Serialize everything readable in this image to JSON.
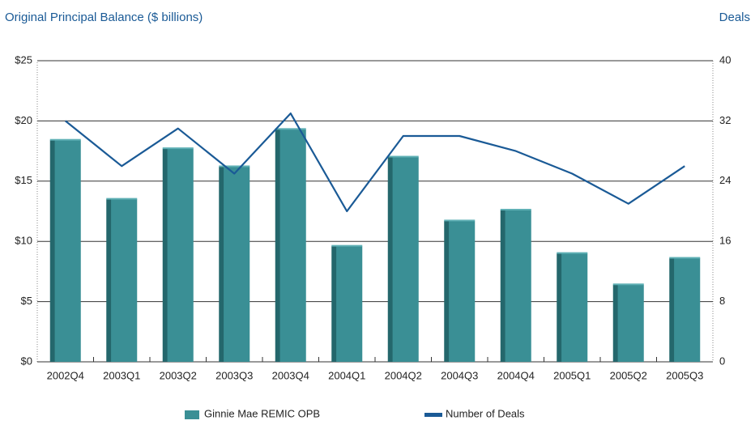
{
  "chart_data": {
    "type": "bar",
    "title": "Original Principal Balance ($ billions)",
    "y2_title": "Deals",
    "categories": [
      "2002Q4",
      "2003Q1",
      "2003Q2",
      "2003Q3",
      "2003Q4",
      "2004Q1",
      "2004Q2",
      "2004Q3",
      "2004Q4",
      "2005Q1",
      "2005Q2",
      "2005Q3"
    ],
    "series": [
      {
        "name": "Ginnie Mae REMIC OPB",
        "type": "bar",
        "color": "#3a8f95",
        "values": [
          18.4,
          13.5,
          17.7,
          16.2,
          19.3,
          9.6,
          17.0,
          11.7,
          12.6,
          9.0,
          6.4,
          8.6
        ]
      },
      {
        "name": "Number of Deals",
        "type": "line",
        "axis": "y2",
        "color": "#1a5a96",
        "values": [
          32,
          26,
          31,
          25,
          33,
          20,
          30,
          30,
          28,
          25,
          21,
          26
        ]
      }
    ],
    "ylim": [
      0,
      25
    ],
    "yticks": [
      {
        "value": 0,
        "label": "$0"
      },
      {
        "value": 5,
        "label": "$5"
      },
      {
        "value": 10,
        "label": "$10"
      },
      {
        "value": 15,
        "label": "$15"
      },
      {
        "value": 20,
        "label": "$20"
      },
      {
        "value": 25,
        "label": "$25"
      }
    ],
    "y2lim": [
      0,
      40
    ],
    "y2ticks": [
      0,
      8,
      16,
      24,
      32,
      40
    ],
    "grid": true
  }
}
